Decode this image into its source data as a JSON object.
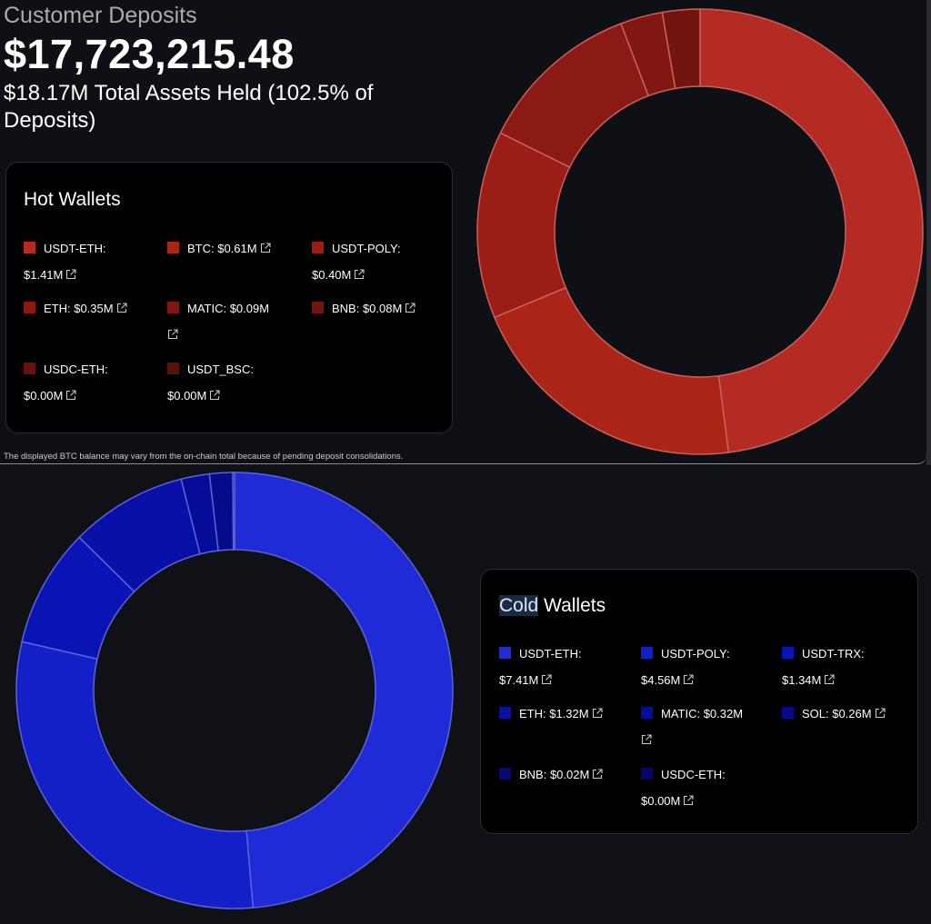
{
  "header": {
    "title": "Customer Deposits",
    "total_deposits": "$17,723,215.48",
    "assets_summary": "$18.17M Total Assets Held (102.5% of Deposits)"
  },
  "hot_wallets": {
    "title": "Hot Wallets",
    "items": [
      {
        "label": "USDT-ETH:",
        "value": "$1.41M",
        "color": "#b32b22"
      },
      {
        "label": "BTC: $0.61M",
        "value": "",
        "color": "#aa2418"
      },
      {
        "label": "USDT-POLY:",
        "value": "$0.40M",
        "color": "#9a1d16"
      },
      {
        "label": "ETH: $0.35M",
        "value": "",
        "color": "#8c1a14"
      },
      {
        "label": "MATIC: $0.09M",
        "value": "",
        "color": "#801711"
      },
      {
        "label": "BNB: $0.08M",
        "value": "",
        "color": "#74140f"
      },
      {
        "label": "USDC-ETH:",
        "value": "$0.00M",
        "color": "#66120e"
      },
      {
        "label": "USDT_BSC:",
        "value": "$0.00M",
        "color": "#5a100c"
      }
    ]
  },
  "cold_wallets": {
    "title_highlight": "Cold",
    "title_rest": " Wallets",
    "items": [
      {
        "label": "USDT-ETH:",
        "value": "$7.41M",
        "color": "#1e2bd6"
      },
      {
        "label": "USDT-POLY:",
        "value": "$4.56M",
        "color": "#1320c8"
      },
      {
        "label": "USDT-TRX:",
        "value": "$1.34M",
        "color": "#0a14b4"
      },
      {
        "label": "ETH: $1.32M",
        "value": "",
        "color": "#0810a8"
      },
      {
        "label": "MATIC: $0.32M",
        "value": "",
        "color": "#060c98"
      },
      {
        "label": "SOL: $0.26M",
        "value": "",
        "color": "#050a88"
      },
      {
        "label": "BNB: $0.02M",
        "value": "",
        "color": "#04087a"
      },
      {
        "label": "USDC-ETH:",
        "value": "$0.00M",
        "color": "#03066c"
      }
    ]
  },
  "footnote": "The displayed BTC balance may vary from the on-chain total because of pending deposit consolidations.",
  "chart_data": [
    {
      "type": "pie",
      "title": "Hot Wallets",
      "donut": true,
      "categories": [
        "USDT-ETH",
        "BTC",
        "USDT-POLY",
        "ETH",
        "MATIC",
        "BNB",
        "USDC-ETH",
        "USDT_BSC"
      ],
      "values": [
        1.41,
        0.61,
        0.4,
        0.35,
        0.09,
        0.08,
        0.0,
        0.0
      ],
      "unit": "$M",
      "colors": [
        "#b32b22",
        "#aa2418",
        "#9a1d16",
        "#8c1a14",
        "#801711",
        "#74140f",
        "#66120e",
        "#5a100c"
      ]
    },
    {
      "type": "pie",
      "title": "Cold Wallets",
      "donut": true,
      "categories": [
        "USDT-ETH",
        "USDT-POLY",
        "USDT-TRX",
        "ETH",
        "MATIC",
        "SOL",
        "BNB",
        "USDC-ETH"
      ],
      "values": [
        7.41,
        4.56,
        1.34,
        1.32,
        0.32,
        0.26,
        0.02,
        0.0
      ],
      "unit": "$M",
      "colors": [
        "#1e2bd6",
        "#1320c8",
        "#0a14b4",
        "#0810a8",
        "#060c98",
        "#050a88",
        "#04087a",
        "#03066c"
      ]
    }
  ]
}
